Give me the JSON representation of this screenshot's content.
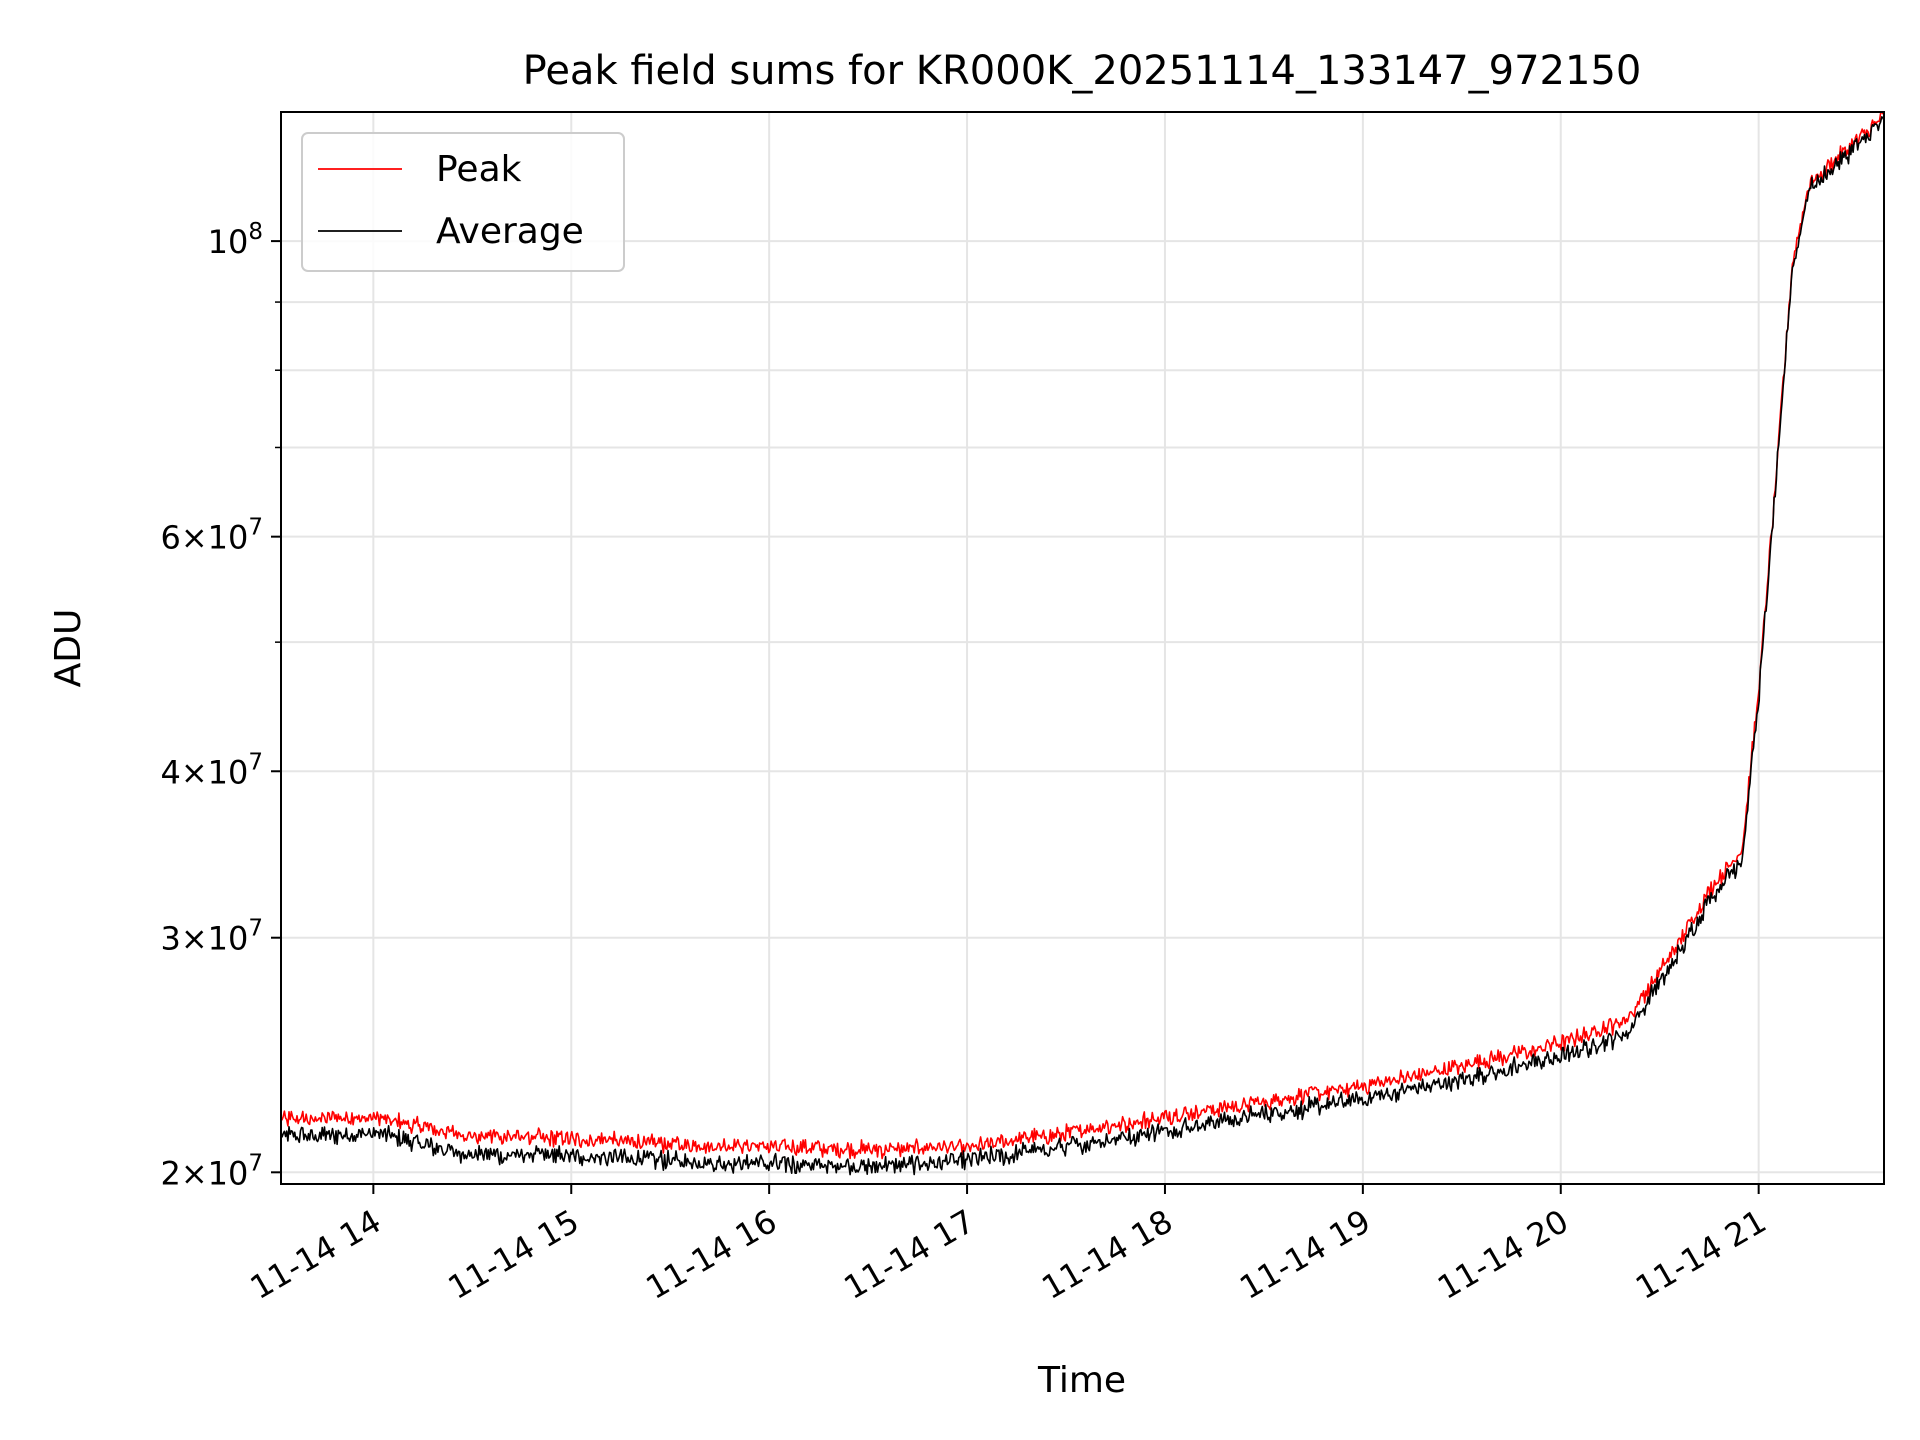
{
  "chart_data": {
    "type": "line",
    "title": "Peak field sums for KR000K_20251114_133147_972150",
    "xlabel": "Time",
    "ylabel": "ADU",
    "yscale": "log",
    "ylim": [
      19600000,
      125000000
    ],
    "xlim": [
      "2025-11-14 13:32",
      "2025-11-14 21:38"
    ],
    "grid": true,
    "legend_position": "upper-left",
    "x_ticks": [
      {
        "label": "11-14 14",
        "time": "2025-11-14 14:00"
      },
      {
        "label": "11-14 15",
        "time": "2025-11-14 15:00"
      },
      {
        "label": "11-14 16",
        "time": "2025-11-14 16:00"
      },
      {
        "label": "11-14 17",
        "time": "2025-11-14 17:00"
      },
      {
        "label": "11-14 18",
        "time": "2025-11-14 18:00"
      },
      {
        "label": "11-14 19",
        "time": "2025-11-14 19:00"
      },
      {
        "label": "11-14 20",
        "time": "2025-11-14 20:00"
      },
      {
        "label": "11-14 21",
        "time": "2025-11-14 21:00"
      }
    ],
    "y_ticks": [
      {
        "value": 20000000,
        "mantissa": "2",
        "exponent": "7"
      },
      {
        "value": 30000000,
        "mantissa": "3",
        "exponent": "7"
      },
      {
        "value": 40000000,
        "mantissa": "4",
        "exponent": "7"
      },
      {
        "value": 60000000,
        "mantissa": "6",
        "exponent": "7"
      },
      {
        "value": 100000000,
        "mantissa": "10",
        "exponent": "8"
      }
    ],
    "y_minor_ticks": [
      50000000,
      70000000,
      80000000,
      90000000
    ],
    "x": [
      "2025-11-14 13:32",
      "2025-11-14 14:00",
      "2025-11-14 14:30",
      "2025-11-14 15:00",
      "2025-11-14 15:30",
      "2025-11-14 16:00",
      "2025-11-14 16:30",
      "2025-11-14 17:00",
      "2025-11-14 17:30",
      "2025-11-14 18:00",
      "2025-11-14 18:30",
      "2025-11-14 19:00",
      "2025-11-14 19:30",
      "2025-11-14 20:00",
      "2025-11-14 20:20",
      "2025-11-14 20:35",
      "2025-11-14 20:45",
      "2025-11-14 20:55",
      "2025-11-14 21:00",
      "2025-11-14 21:05",
      "2025-11-14 21:10",
      "2025-11-14 21:15",
      "2025-11-14 21:20",
      "2025-11-14 21:25",
      "2025-11-14 21:30",
      "2025-11-14 21:38"
    ],
    "series": [
      {
        "name": "Peak",
        "color": "#ff0000",
        "values": [
          21900000,
          22000000,
          21300000,
          21200000,
          21000000,
          20900000,
          20800000,
          20900000,
          21400000,
          22000000,
          22600000,
          23200000,
          24000000,
          25000000,
          26000000,
          29500000,
          32500000,
          35000000,
          46000000,
          65000000,
          95000000,
          110000000,
          113000000,
          116000000,
          119000000,
          124000000
        ]
      },
      {
        "name": "Average",
        "color": "#000000",
        "values": [
          21300000,
          21400000,
          20600000,
          20600000,
          20400000,
          20300000,
          20200000,
          20400000,
          20900000,
          21500000,
          22100000,
          22700000,
          23500000,
          24400000,
          25400000,
          29000000,
          32000000,
          34400000,
          45500000,
          64500000,
          94500000,
          109000000,
          112000000,
          115000000,
          118000000,
          123000000
        ]
      }
    ]
  }
}
